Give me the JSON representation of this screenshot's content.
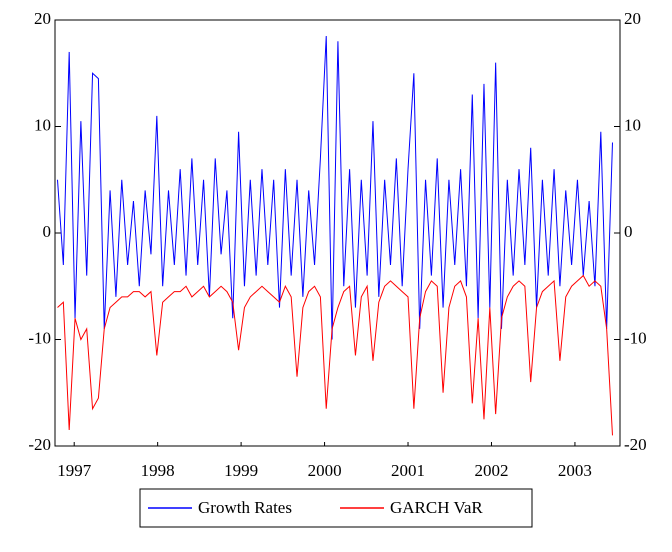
{
  "chart_data": {
    "type": "line",
    "x": [
      1997.3,
      1997.37,
      1997.44,
      1997.51,
      1997.58,
      1997.65,
      1997.72,
      1997.79,
      1997.86,
      1997.93,
      1998.0,
      1998.07,
      1998.14,
      1998.21,
      1998.28,
      1998.35,
      1998.42,
      1998.49,
      1998.56,
      1998.63,
      1998.7,
      1998.77,
      1998.84,
      1998.91,
      1998.98,
      1999.05,
      1999.12,
      1999.19,
      1999.26,
      1999.33,
      1999.4,
      1999.47,
      1999.54,
      1999.61,
      1999.68,
      1999.75,
      1999.82,
      1999.89,
      1999.96,
      2000.03,
      2000.1,
      2000.17,
      2000.24,
      2000.31,
      2000.38,
      2000.45,
      2000.52,
      2000.59,
      2000.66,
      2000.73,
      2000.8,
      2000.87,
      2000.94,
      2001.01,
      2001.08,
      2001.15,
      2001.22,
      2001.29,
      2001.36,
      2001.43,
      2001.5,
      2001.57,
      2001.64,
      2001.71,
      2001.78,
      2001.85,
      2001.92,
      2001.99,
      2002.06,
      2002.13,
      2002.2,
      2002.27,
      2002.34,
      2002.41,
      2002.48,
      2002.55,
      2002.62,
      2002.69,
      2002.76,
      2002.83,
      2002.9,
      2002.97,
      2003.04,
      2003.11,
      2003.18,
      2003.25,
      2003.32,
      2003.39,
      2003.46,
      2003.53,
      2003.6,
      2003.67,
      2003.74,
      2003.81,
      2003.88,
      2003.95
    ],
    "series": [
      {
        "name": "Growth Rates",
        "color": "#0000ff",
        "values": [
          5,
          -3,
          17,
          -8,
          10.5,
          -4,
          15,
          14.5,
          -9,
          4,
          -6,
          5,
          -3,
          3,
          -5,
          4,
          -2,
          11,
          -5,
          4,
          -3,
          6,
          -4,
          7,
          -3,
          5,
          -6,
          7,
          -2,
          4,
          -8,
          9.5,
          -5,
          5,
          -4,
          6,
          -3,
          5,
          -7,
          6,
          -4,
          5,
          -6,
          4,
          -3,
          7,
          18.5,
          -10,
          18,
          -5,
          6,
          -7,
          5,
          -4,
          10.5,
          -6,
          5,
          -3,
          7,
          -5,
          6,
          15,
          -9,
          5,
          -4,
          7,
          -7,
          5,
          -3,
          6,
          -5,
          13,
          -8,
          14,
          -7,
          16,
          -9,
          5,
          -4,
          6,
          -3,
          8,
          -7,
          5,
          -4,
          6,
          -5,
          4,
          -3,
          5,
          -4,
          3,
          -5,
          9.5,
          -9,
          8.5
        ]
      },
      {
        "name": "GARCH VaR",
        "color": "#ff0000",
        "values": [
          -7,
          -6.5,
          -18.5,
          -8,
          -10,
          -9,
          -16.5,
          -15.5,
          -9,
          -7,
          -6.5,
          -6,
          -6,
          -5.5,
          -5.5,
          -6,
          -5.5,
          -11.5,
          -6.5,
          -6,
          -5.5,
          -5.5,
          -5,
          -6,
          -5.5,
          -5,
          -6,
          -5.5,
          -5,
          -5.5,
          -6.5,
          -11,
          -7,
          -6,
          -5.5,
          -5,
          -5.5,
          -6,
          -6.5,
          -5,
          -6,
          -13.5,
          -7,
          -5.5,
          -5,
          -6,
          -16.5,
          -9,
          -7,
          -5.5,
          -5,
          -11.5,
          -6,
          -5,
          -12,
          -6.5,
          -5,
          -4.5,
          -5,
          -5.5,
          -6,
          -16.5,
          -8,
          -5.5,
          -4.5,
          -5,
          -15,
          -7,
          -5,
          -4.5,
          -6,
          -16,
          -8,
          -17.5,
          -7,
          -17,
          -8,
          -6,
          -5,
          -4.5,
          -5,
          -14,
          -7,
          -5.5,
          -5,
          -4.5,
          -12,
          -6,
          -5,
          -4.5,
          -4,
          -5,
          -4.5,
          -5,
          -9,
          -19
        ]
      }
    ],
    "xlim": [
      1997.27,
      2004.04
    ],
    "xticks": [
      {
        "value": 1997.5,
        "label": "1997"
      },
      {
        "value": 1998.5,
        "label": "1998"
      },
      {
        "value": 1999.5,
        "label": "1999"
      },
      {
        "value": 2000.5,
        "label": "2000"
      },
      {
        "value": 2001.5,
        "label": "2001"
      },
      {
        "value": 2002.5,
        "label": "2002"
      },
      {
        "value": 2003.5,
        "label": "2003"
      }
    ],
    "ylim": [
      -20,
      20
    ],
    "yticks": [
      -20,
      -10,
      0,
      10,
      20
    ],
    "y2lim": [
      -20,
      20
    ],
    "y2ticks": [
      -20,
      -10,
      0,
      10,
      20
    ],
    "legend": "bottom"
  }
}
